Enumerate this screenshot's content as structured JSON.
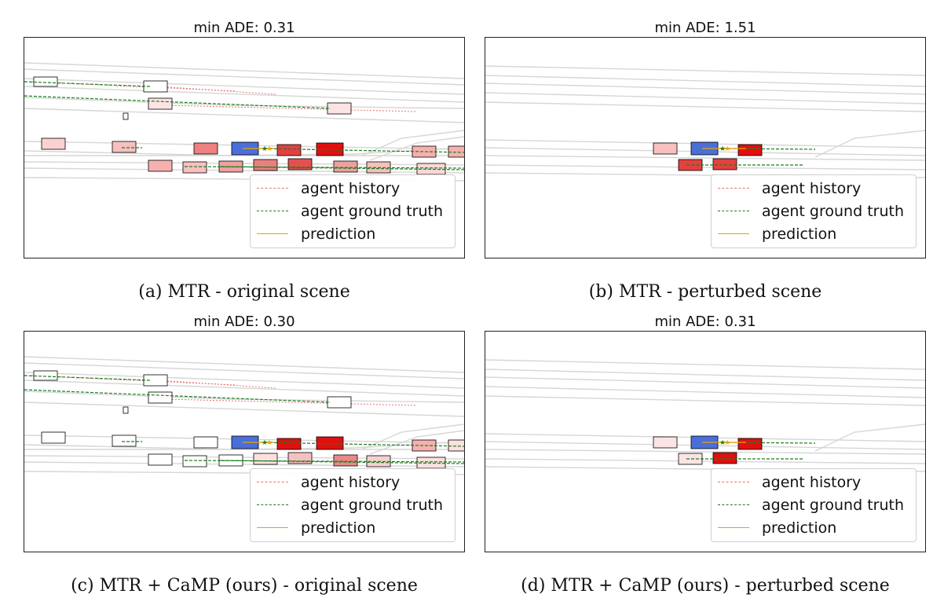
{
  "panels": [
    {
      "title": "min ADE: 0.31",
      "caption": "(a) MTR - original scene"
    },
    {
      "title": "min ADE: 1.51",
      "caption": "(b) MTR - perturbed scene"
    },
    {
      "title": "min ADE: 0.30",
      "caption": "(c) MTR + CaMP (ours) - original scene"
    },
    {
      "title": "min ADE: 0.31",
      "caption": "(d) MTR + CaMP (ours) - perturbed scene"
    }
  ],
  "legend": {
    "history": "agent history",
    "ground_truth": "agent ground truth",
    "prediction": "prediction"
  },
  "colors": {
    "history": "#e57373",
    "ground_truth": "#1a7f1a",
    "prediction": "#f0a000",
    "ego": "#4a6fd8",
    "lane": "#d6d6d6"
  },
  "chart_data": [
    {
      "type": "scatter",
      "title": "min ADE: 0.31",
      "caption": "(a) MTR - original scene",
      "min_ade": 0.31,
      "legend": [
        "agent history",
        "agent ground truth",
        "prediction"
      ]
    },
    {
      "type": "scatter",
      "title": "min ADE: 1.51",
      "caption": "(b) MTR - perturbed scene",
      "min_ade": 1.51,
      "legend": [
        "agent history",
        "agent ground truth",
        "prediction"
      ]
    },
    {
      "type": "scatter",
      "title": "min ADE: 0.30",
      "caption": "(c) MTR + CaMP (ours) - original scene",
      "min_ade": 0.3,
      "legend": [
        "agent history",
        "agent ground truth",
        "prediction"
      ]
    },
    {
      "type": "scatter",
      "title": "min ADE: 0.31",
      "caption": "(d) MTR + CaMP (ours) - perturbed scene",
      "min_ade": 0.31,
      "legend": [
        "agent history",
        "agent ground truth",
        "prediction"
      ]
    }
  ]
}
